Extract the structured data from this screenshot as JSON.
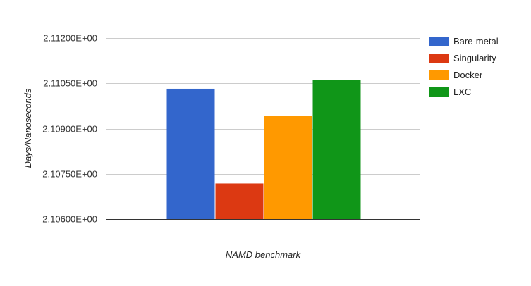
{
  "chart_data": {
    "type": "bar",
    "categories": [
      ""
    ],
    "series": [
      {
        "name": "Bare-metal",
        "color": "#3366cc",
        "values": [
          2.11032
        ]
      },
      {
        "name": "Singularity",
        "color": "#dc3912",
        "values": [
          2.10718
        ]
      },
      {
        "name": "Docker",
        "color": "#ff9900",
        "values": [
          2.10942
        ]
      },
      {
        "name": "LXC",
        "color": "#109618",
        "values": [
          2.1106
        ]
      }
    ],
    "title": "",
    "xlabel": "NAMD benchmark",
    "ylabel": "Days/Nanoseconds",
    "ylim": [
      2.106,
      2.112
    ],
    "yticks": [
      2.106,
      2.1075,
      2.109,
      2.1105,
      2.112
    ],
    "ytick_labels": [
      "2.10600E+00",
      "2.10750E+00",
      "2.10900E+00",
      "2.11050E+00",
      "2.11200E+00"
    ],
    "grid": true,
    "legend": "right",
    "gridline_color": "#cccccc"
  }
}
